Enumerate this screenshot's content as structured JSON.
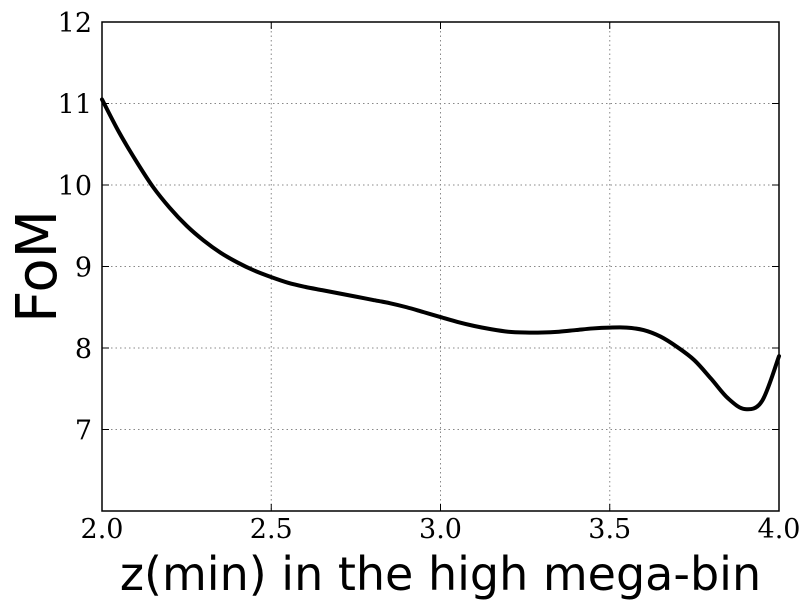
{
  "chart_data": {
    "type": "line",
    "title": "",
    "xlabel": "z(min) in the high mega-bin",
    "ylabel": "FoM",
    "xlim": [
      2.0,
      4.0
    ],
    "ylim": [
      6.0,
      12.0
    ],
    "xticks": [
      2.0,
      2.5,
      3.0,
      3.5,
      4.0
    ],
    "xtick_labels": [
      "2.0",
      "2.5",
      "3.0",
      "3.5",
      "4.0"
    ],
    "yticks": [
      7,
      8,
      9,
      10,
      11,
      12
    ],
    "ytick_labels": [
      "7",
      "8",
      "9",
      "10",
      "11",
      "12"
    ],
    "grid": true,
    "legend": "none",
    "colors": {
      "line": "#000000",
      "grid": "#888888",
      "background": "#ffffff"
    },
    "series": [
      {
        "x": [
          2.0,
          2.05,
          2.1,
          2.15,
          2.2,
          2.25,
          2.3,
          2.35,
          2.4,
          2.45,
          2.5,
          2.55,
          2.6,
          2.65,
          2.7,
          2.75,
          2.8,
          2.85,
          2.9,
          2.95,
          3.0,
          3.05,
          3.1,
          3.15,
          3.2,
          3.25,
          3.3,
          3.35,
          3.4,
          3.45,
          3.5,
          3.55,
          3.6,
          3.65,
          3.7,
          3.75,
          3.8,
          3.85,
          3.9,
          3.95,
          4.0
        ],
        "y": [
          11.05,
          10.65,
          10.3,
          9.98,
          9.72,
          9.5,
          9.32,
          9.17,
          9.05,
          8.95,
          8.87,
          8.8,
          8.75,
          8.71,
          8.67,
          8.63,
          8.59,
          8.55,
          8.5,
          8.44,
          8.38,
          8.32,
          8.27,
          8.23,
          8.2,
          8.19,
          8.19,
          8.2,
          8.22,
          8.24,
          8.25,
          8.25,
          8.22,
          8.14,
          8.01,
          7.85,
          7.62,
          7.38,
          7.25,
          7.35,
          7.9
        ]
      }
    ]
  }
}
